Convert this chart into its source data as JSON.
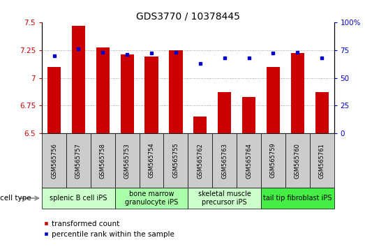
{
  "title": "GDS3770 / 10378445",
  "samples": [
    "GSM565756",
    "GSM565757",
    "GSM565758",
    "GSM565753",
    "GSM565754",
    "GSM565755",
    "GSM565762",
    "GSM565763",
    "GSM565764",
    "GSM565759",
    "GSM565760",
    "GSM565761"
  ],
  "red_values": [
    7.1,
    7.47,
    7.27,
    7.21,
    7.19,
    7.25,
    6.65,
    6.87,
    6.83,
    7.1,
    7.22,
    6.87
  ],
  "blue_values": [
    70,
    76,
    73,
    71,
    72,
    73,
    63,
    68,
    68,
    72,
    73,
    68
  ],
  "ylim_left": [
    6.5,
    7.5
  ],
  "ylim_right": [
    0,
    100
  ],
  "yticks_left": [
    6.5,
    6.75,
    7.0,
    7.25,
    7.5
  ],
  "ytick_labels_left": [
    "6.5",
    "6.75",
    "7",
    "7.25",
    "7.5"
  ],
  "yticks_right": [
    0,
    25,
    50,
    75,
    100
  ],
  "ytick_labels_right": [
    "0",
    "25",
    "50",
    "75",
    "100%"
  ],
  "cell_type_groups": [
    {
      "label": "splenic B cell iPS",
      "start": 0,
      "end": 3,
      "color": "#ccffcc"
    },
    {
      "label": "bone marrow\ngranulocyte iPS",
      "start": 3,
      "end": 6,
      "color": "#aaffaa"
    },
    {
      "label": "skeletal muscle\nprecursor iPS",
      "start": 6,
      "end": 9,
      "color": "#ccffcc"
    },
    {
      "label": "tail tip fibroblast iPS",
      "start": 9,
      "end": 12,
      "color": "#44ee44"
    }
  ],
  "red_color": "#cc0000",
  "blue_color": "#0000cc",
  "grid_color": "#888888",
  "bar_width": 0.55,
  "tick_label_fontsize": 6,
  "title_fontsize": 10,
  "cell_type_label_fontsize": 7,
  "group_label_fontsize": 7
}
